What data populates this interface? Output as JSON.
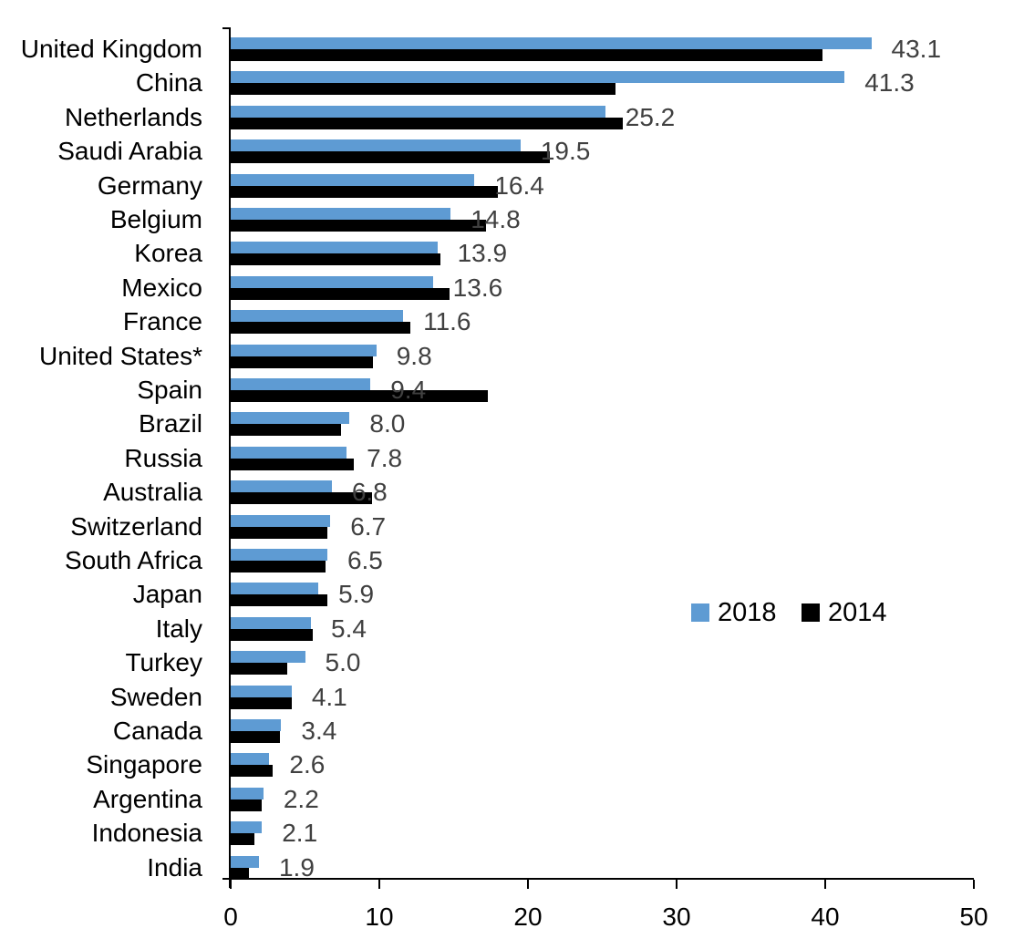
{
  "chart_data": {
    "type": "bar",
    "orientation": "horizontal",
    "title": "",
    "xlabel": "",
    "ylabel": "",
    "xlim": [
      0,
      50
    ],
    "x_ticks": [
      "0",
      "10",
      "20",
      "30",
      "40",
      "50"
    ],
    "grid": false,
    "legend_position": "middle-right",
    "categories": [
      "United Kingdom",
      "China",
      "Netherlands",
      "Saudi Arabia",
      "Germany",
      "Belgium",
      "Korea",
      "Mexico",
      "France",
      "United States*",
      "Spain",
      "Brazil",
      "Russia",
      "Australia",
      "Switzerland",
      "South Africa",
      "Japan",
      "Italy",
      "Turkey",
      "Sweden",
      "Canada",
      "Singapore",
      "Argentina",
      "Indonesia",
      "India"
    ],
    "series": [
      {
        "name": "2018",
        "color": "#5E9BD3",
        "values": [
          43.1,
          41.3,
          25.2,
          19.5,
          16.4,
          14.8,
          13.9,
          13.6,
          11.6,
          9.8,
          9.4,
          8.0,
          7.8,
          6.8,
          6.7,
          6.5,
          5.9,
          5.4,
          5.0,
          4.1,
          3.4,
          2.6,
          2.2,
          2.1,
          1.9
        ]
      },
      {
        "name": "2014",
        "color": "#000000",
        "values": [
          39.8,
          25.9,
          26.4,
          21.5,
          18.0,
          17.2,
          14.1,
          14.7,
          12.1,
          9.6,
          17.3,
          7.4,
          8.3,
          9.5,
          6.5,
          6.4,
          6.5,
          5.5,
          3.8,
          4.1,
          3.3,
          2.8,
          2.1,
          1.6,
          1.2
        ]
      }
    ],
    "value_labels": [
      "43.1",
      "41.3",
      "25.2",
      "19.5",
      "16.4",
      "14.8",
      "13.9",
      "13.6",
      "11.6",
      "9.8",
      "9.4",
      "8.0",
      "7.8",
      "6.8",
      "6.7",
      "6.5",
      "5.9",
      "5.4",
      "5.0",
      "4.1",
      "3.4",
      "2.6",
      "2.2",
      "2.1",
      "1.9"
    ]
  },
  "colors": {
    "series_2018": "#5E9BD3",
    "series_2014": "#000000",
    "value_label": "#404040",
    "axis": "#000000"
  }
}
